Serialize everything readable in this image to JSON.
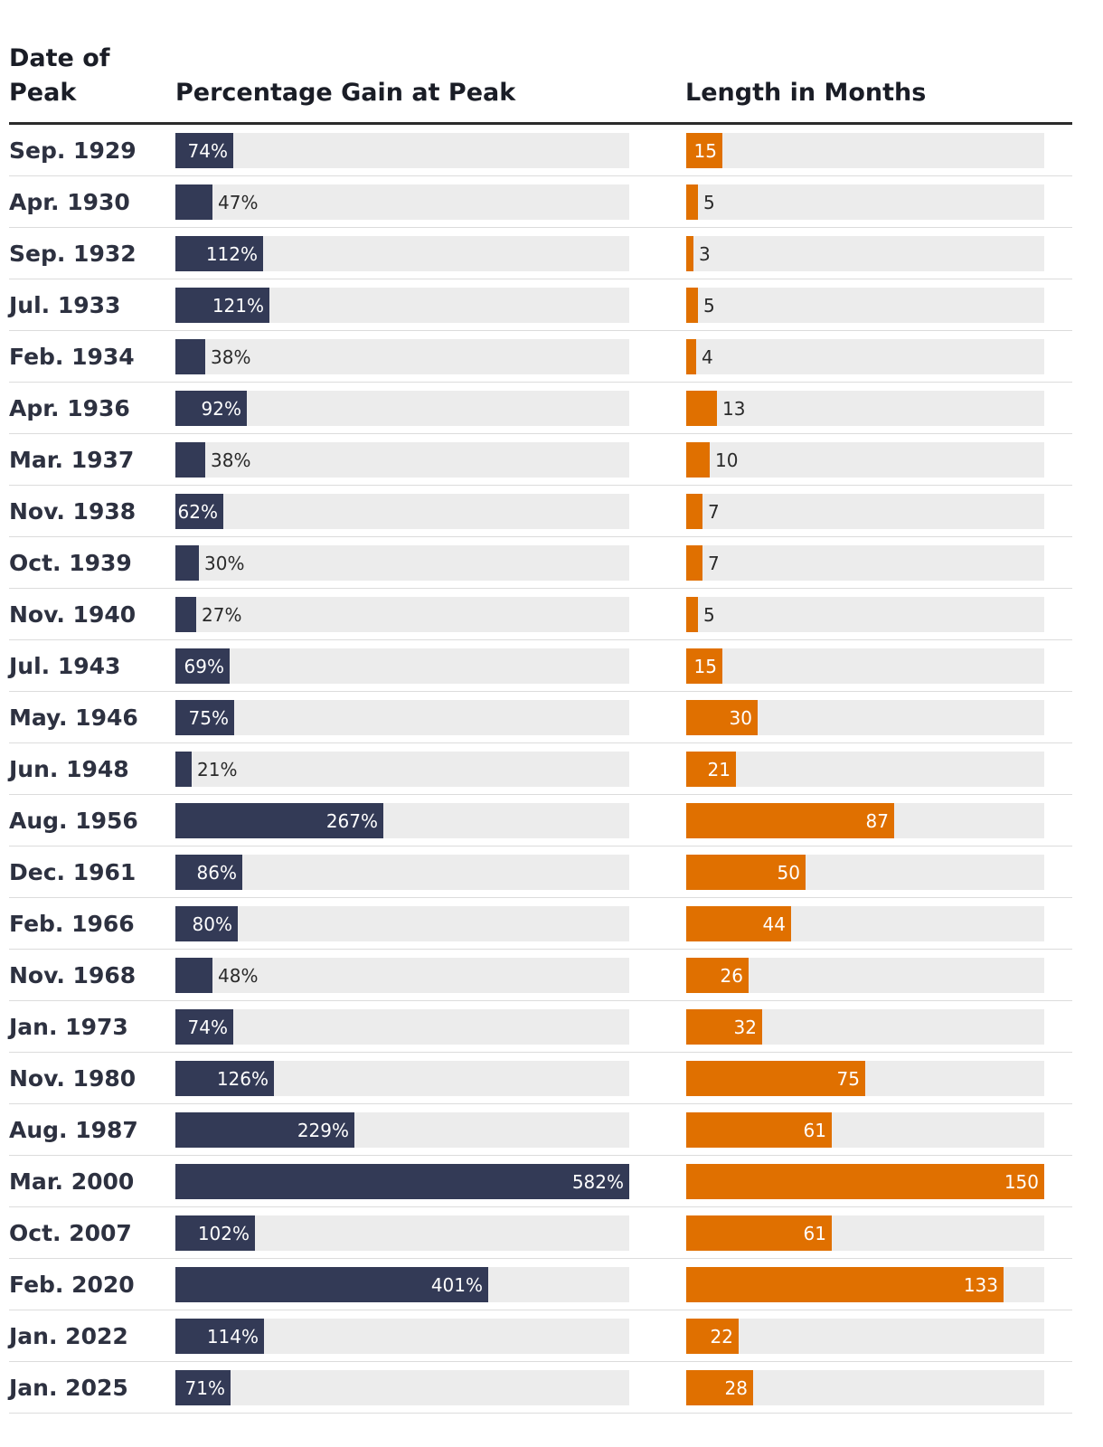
{
  "chart_data": {
    "type": "table",
    "headers": {
      "date": "Date of Peak",
      "gain": "Percentage Gain at Peak",
      "length": "Length in Months"
    },
    "gain_max": 582,
    "length_max": 150,
    "colors": {
      "gain_bar": "#333a56",
      "length_bar": "#e07000",
      "track": "#ececec"
    },
    "rows": [
      {
        "date": "Sep. 1929",
        "gain": 74,
        "gain_label": "74%",
        "length": 15,
        "length_label": "15"
      },
      {
        "date": "Apr. 1930",
        "gain": 47,
        "gain_label": "47%",
        "length": 5,
        "length_label": "5"
      },
      {
        "date": "Sep. 1932",
        "gain": 112,
        "gain_label": "112%",
        "length": 3,
        "length_label": "3"
      },
      {
        "date": "Jul. 1933",
        "gain": 121,
        "gain_label": "121%",
        "length": 5,
        "length_label": "5"
      },
      {
        "date": "Feb. 1934",
        "gain": 38,
        "gain_label": "38%",
        "length": 4,
        "length_label": "4"
      },
      {
        "date": "Apr. 1936",
        "gain": 92,
        "gain_label": "92%",
        "length": 13,
        "length_label": "13"
      },
      {
        "date": "Mar. 1937",
        "gain": 38,
        "gain_label": "38%",
        "length": 10,
        "length_label": "10"
      },
      {
        "date": "Nov. 1938",
        "gain": 62,
        "gain_label": "62%",
        "length": 7,
        "length_label": "7"
      },
      {
        "date": "Oct. 1939",
        "gain": 30,
        "gain_label": "30%",
        "length": 7,
        "length_label": "7"
      },
      {
        "date": "Nov. 1940",
        "gain": 27,
        "gain_label": "27%",
        "length": 5,
        "length_label": "5"
      },
      {
        "date": "Jul. 1943",
        "gain": 69,
        "gain_label": "69%",
        "length": 15,
        "length_label": "15"
      },
      {
        "date": "May. 1946",
        "gain": 75,
        "gain_label": "75%",
        "length": 30,
        "length_label": "30"
      },
      {
        "date": "Jun. 1948",
        "gain": 21,
        "gain_label": "21%",
        "length": 21,
        "length_label": "21"
      },
      {
        "date": "Aug. 1956",
        "gain": 267,
        "gain_label": "267%",
        "length": 87,
        "length_label": "87"
      },
      {
        "date": "Dec. 1961",
        "gain": 86,
        "gain_label": "86%",
        "length": 50,
        "length_label": "50"
      },
      {
        "date": "Feb. 1966",
        "gain": 80,
        "gain_label": "80%",
        "length": 44,
        "length_label": "44"
      },
      {
        "date": "Nov. 1968",
        "gain": 48,
        "gain_label": "48%",
        "length": 26,
        "length_label": "26"
      },
      {
        "date": "Jan. 1973",
        "gain": 74,
        "gain_label": "74%",
        "length": 32,
        "length_label": "32"
      },
      {
        "date": "Nov. 1980",
        "gain": 126,
        "gain_label": "126%",
        "length": 75,
        "length_label": "75"
      },
      {
        "date": "Aug. 1987",
        "gain": 229,
        "gain_label": "229%",
        "length": 61,
        "length_label": "61"
      },
      {
        "date": "Mar. 2000",
        "gain": 582,
        "gain_label": "582%",
        "length": 150,
        "length_label": "150"
      },
      {
        "date": "Oct. 2007",
        "gain": 102,
        "gain_label": "102%",
        "length": 61,
        "length_label": "61"
      },
      {
        "date": "Feb. 2020",
        "gain": 401,
        "gain_label": "401%",
        "length": 133,
        "length_label": "133"
      },
      {
        "date": "Jan. 2022",
        "gain": 114,
        "gain_label": "114%",
        "length": 22,
        "length_label": "22"
      },
      {
        "date": "Jan. 2025",
        "gain": 71,
        "gain_label": "71%",
        "length": 28,
        "length_label": "28"
      }
    ]
  }
}
